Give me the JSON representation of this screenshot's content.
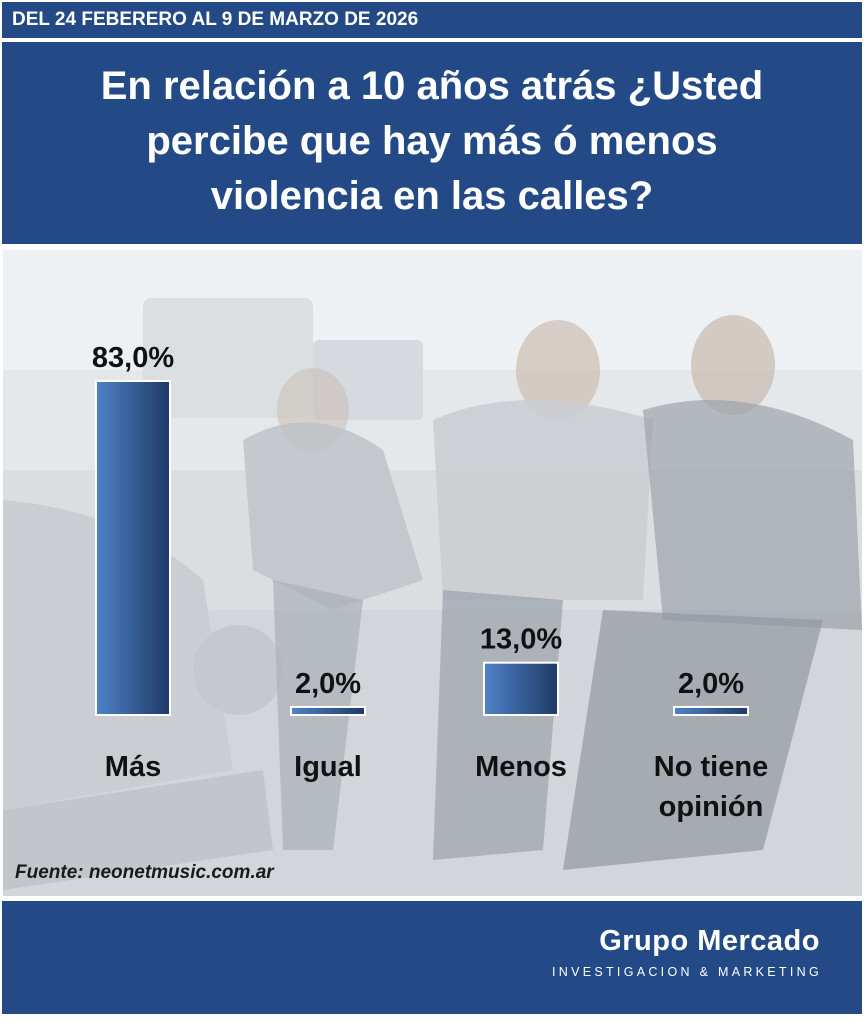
{
  "header": {
    "date_range": "DEL 24 FEBERERO AL 9 DE MARZO DE 2026",
    "question": "En relación a 10 años atrás ¿Usted\npercibe que hay más ó menos\nviolencia en las calles?"
  },
  "chart_data": {
    "type": "bar",
    "categories": [
      "Más",
      "Igual",
      "Menos",
      "No tiene\nopinión"
    ],
    "values": [
      83.0,
      2.0,
      13.0,
      2.0
    ],
    "data_labels": [
      "83,0%",
      "2,0%",
      "13,0%",
      "2,0%"
    ],
    "value_unit": "%",
    "ylim": [
      0,
      100
    ],
    "grid": false,
    "legend": "none"
  },
  "source_note": "Fuente: neonetmusic.com.ar",
  "footer": {
    "brand_name": "Grupo Mercado",
    "brand_tagline": "INVESTIGACION & MARKETING"
  },
  "colors": {
    "brand_blue": "#234a86",
    "bar_light": "#4f82c8",
    "bar_dark": "#1f3a66"
  }
}
